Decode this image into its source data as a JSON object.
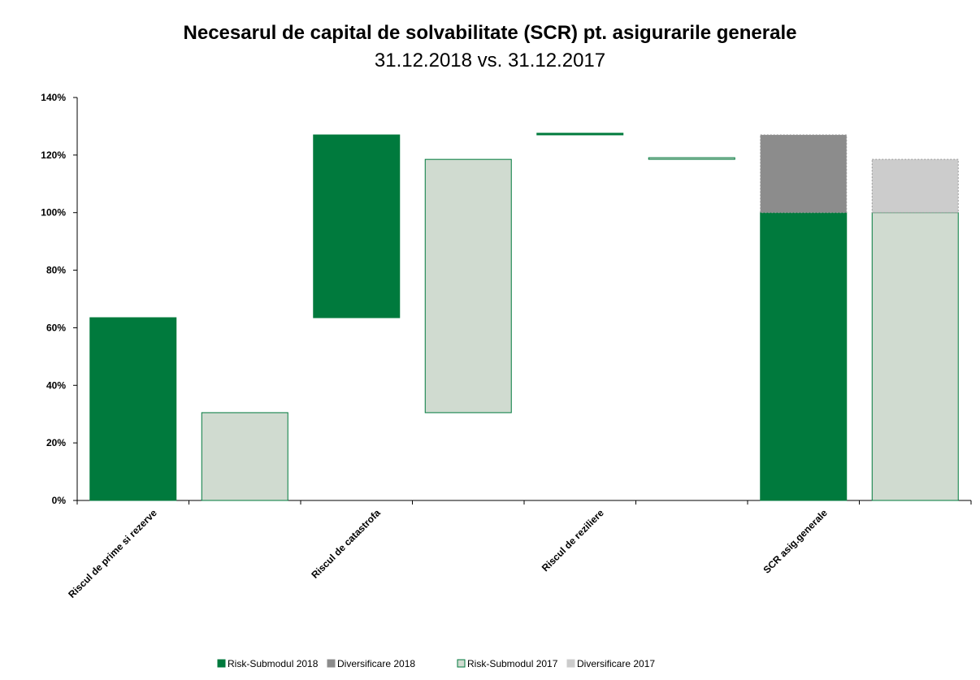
{
  "chart_data": {
    "type": "waterfall",
    "title": "Necesarul de capital de solvabilitate (SCR) pt. asigurarile generale",
    "subtitle": "31.12.2018 vs. 31.12.2017",
    "categories": [
      "Riscul de prime si rezerve",
      null,
      "Riscul de catastrofa",
      null,
      "Riscul de reziliere",
      null,
      "SCR asig.generale",
      null
    ],
    "series": [
      {
        "name": "Risk-Submodul 2018",
        "color": "#007a3d",
        "values": [
          63.5,
          null,
          63.5,
          null,
          0.3,
          null,
          100,
          null
        ]
      },
      {
        "name": "Diversificare 2018",
        "color": "#8c8c8c",
        "values": [
          null,
          null,
          null,
          null,
          null,
          null,
          27,
          null
        ]
      },
      {
        "name": "Risk-Submodul 2017",
        "color": "#d0dbd0",
        "values": [
          null,
          30.5,
          null,
          88,
          null,
          0.3,
          null,
          100
        ]
      },
      {
        "name": "Diversificare 2017",
        "color": "#cccccc",
        "values": [
          null,
          null,
          null,
          null,
          null,
          null,
          null,
          18.5
        ]
      }
    ],
    "ylim": [
      0,
      140
    ],
    "yticks": [
      {
        "value": 0,
        "label": "0%"
      },
      {
        "value": 20,
        "label": "20%"
      },
      {
        "value": 40,
        "label": "40%"
      },
      {
        "value": 60,
        "label": "60%"
      },
      {
        "value": 80,
        "label": "80%"
      },
      {
        "value": 100,
        "label": "100%"
      },
      {
        "value": 120,
        "label": "120%"
      },
      {
        "value": 140,
        "label": "140%"
      }
    ]
  }
}
